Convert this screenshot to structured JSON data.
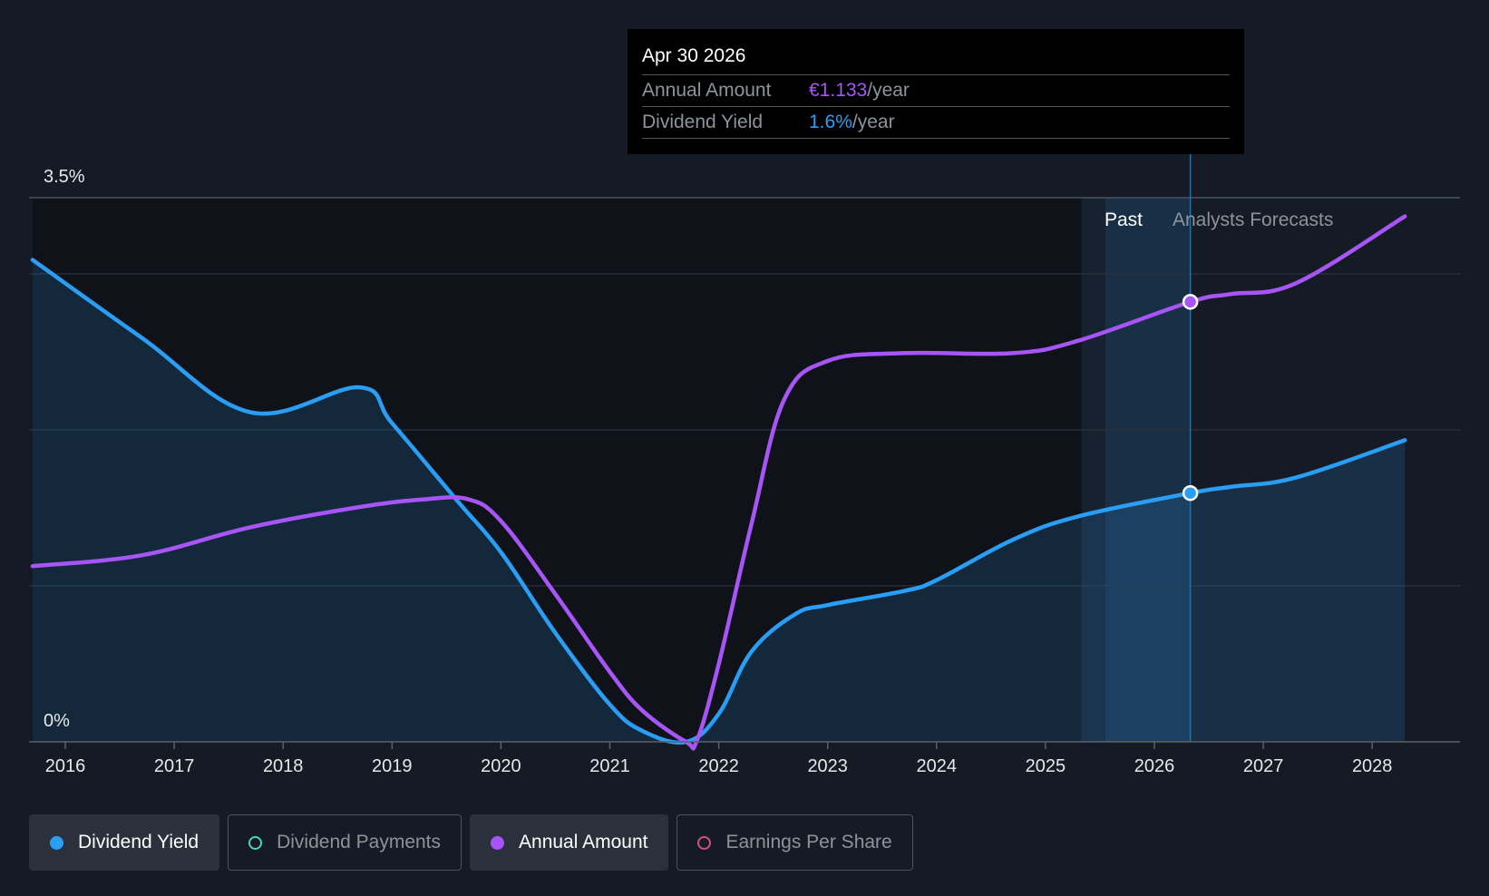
{
  "tooltip": {
    "date": "Apr 30 2026",
    "rows": [
      {
        "label": "Annual Amount",
        "value": "€1.133",
        "unit": "/year",
        "color": "#a855f7"
      },
      {
        "label": "Dividend Yield",
        "value": "1.6%",
        "unit": "/year",
        "color": "#2a9df4"
      }
    ]
  },
  "chart_data": {
    "type": "line",
    "y_ticks": [
      "3.5%",
      "0%"
    ],
    "ylim": [
      0,
      3.5
    ],
    "x_ticks": [
      "2016",
      "2017",
      "2018",
      "2019",
      "2020",
      "2021",
      "2022",
      "2023",
      "2024",
      "2025",
      "2026",
      "2027",
      "2028"
    ],
    "xlim": [
      2015.0,
      2028.3
    ],
    "region_labels": {
      "past": "Past",
      "forecast": "Analysts Forecasts"
    },
    "series": [
      {
        "name": "Dividend Yield",
        "color": "#2a9df4",
        "area": true,
        "points": [
          [
            2015.7,
            3.1
          ],
          [
            2016.7,
            2.6
          ],
          [
            2017.7,
            2.12
          ],
          [
            2018.7,
            2.28
          ],
          [
            2019.0,
            2.05
          ],
          [
            2019.6,
            1.55
          ],
          [
            2020.0,
            1.22
          ],
          [
            2020.5,
            0.7
          ],
          [
            2021.0,
            0.24
          ],
          [
            2021.3,
            0.07
          ],
          [
            2021.7,
            0.0
          ],
          [
            2022.0,
            0.18
          ],
          [
            2022.3,
            0.58
          ],
          [
            2022.7,
            0.82
          ],
          [
            2023.0,
            0.88
          ],
          [
            2023.7,
            0.97
          ],
          [
            2024.0,
            1.04
          ],
          [
            2024.7,
            1.3
          ],
          [
            2025.3,
            1.45
          ],
          [
            2026.33,
            1.6
          ],
          [
            2026.7,
            1.64
          ],
          [
            2027.3,
            1.7
          ],
          [
            2028.3,
            1.94
          ]
        ]
      },
      {
        "name": "Annual Amount",
        "color": "#a855f7",
        "area": false,
        "points": [
          [
            2015.7,
            1.13
          ],
          [
            2016.7,
            1.2
          ],
          [
            2017.7,
            1.38
          ],
          [
            2018.7,
            1.51
          ],
          [
            2019.3,
            1.56
          ],
          [
            2019.7,
            1.56
          ],
          [
            2020.0,
            1.42
          ],
          [
            2020.5,
            0.95
          ],
          [
            2021.0,
            0.45
          ],
          [
            2021.3,
            0.2
          ],
          [
            2021.7,
            0.0
          ],
          [
            2021.8,
            0.01
          ],
          [
            2022.0,
            0.5
          ],
          [
            2022.3,
            1.4
          ],
          [
            2022.6,
            2.2
          ],
          [
            2023.0,
            2.45
          ],
          [
            2023.7,
            2.5
          ],
          [
            2024.7,
            2.5
          ],
          [
            2025.3,
            2.58
          ],
          [
            2026.33,
            2.83
          ],
          [
            2026.7,
            2.88
          ],
          [
            2027.3,
            2.95
          ],
          [
            2028.3,
            3.38
          ]
        ]
      }
    ],
    "highlight": {
      "x": 2026.33,
      "values": [
        1.6,
        2.83
      ]
    },
    "past_forecast_boundary": 2025.55
  },
  "legend": [
    {
      "label": "Dividend Yield",
      "color": "#2a9df4",
      "active": true
    },
    {
      "label": "Dividend Payments",
      "color": "#4fd1c5",
      "active": false
    },
    {
      "label": "Annual Amount",
      "color": "#a855f7",
      "active": true
    },
    {
      "label": "Earnings Per Share",
      "color": "#d04f84",
      "active": false
    }
  ]
}
